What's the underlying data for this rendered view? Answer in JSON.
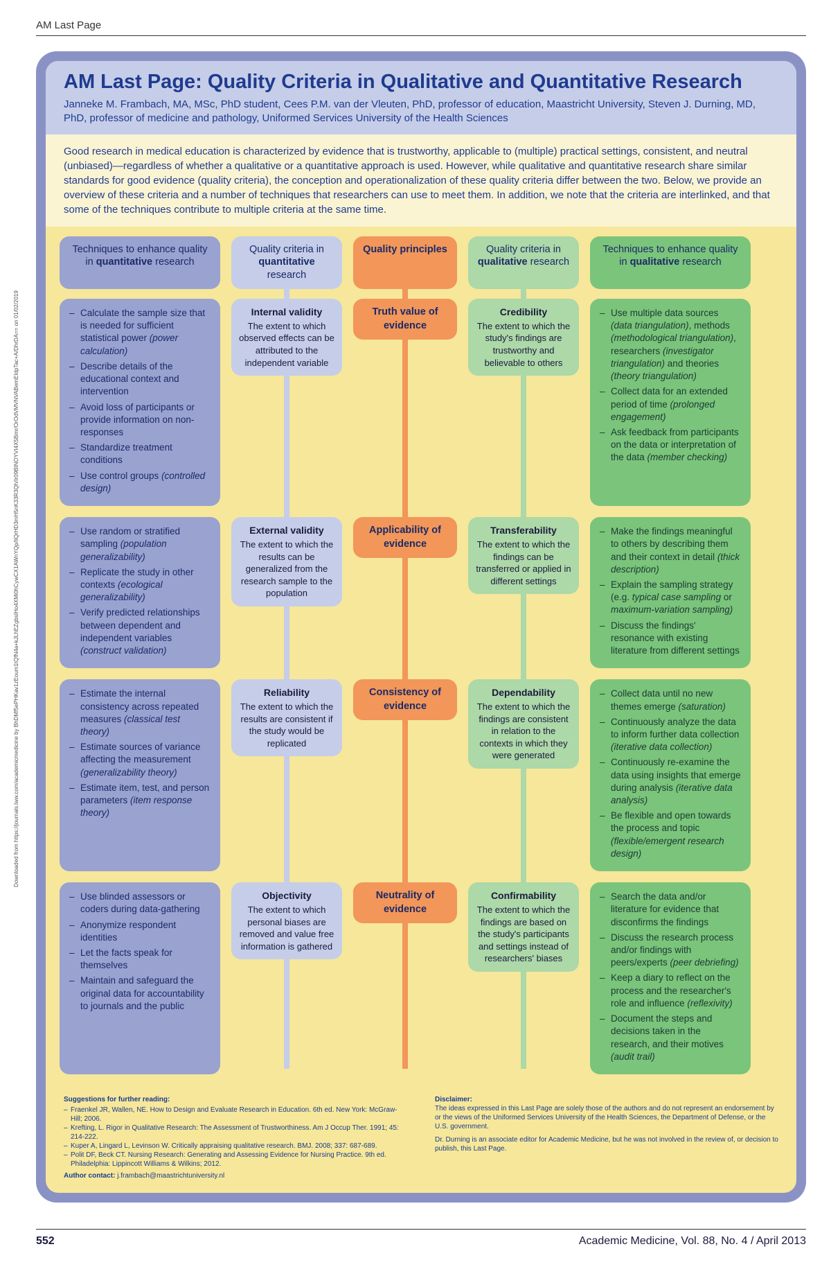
{
  "running_head": "AM Last Page",
  "side_note": "Downloaded from https://journals.lww.com/academicmedicine by BhDMf5ePHKav1zEoum1tQfN4a+kJLhEZgbsIHo4XMi0hCywCX1AWnYQp/IlQrHD3mH5nK33R3Qh/Ir09BINOYVI4X5Bmr/OrOdVMVNVABemEIdpTac+A/DhrDA== on 01/02/2019",
  "title": "AM Last Page: Quality Criteria in Qualitative and Quantitative Research",
  "authors": "Janneke M. Frambach, MA, MSc, PhD student, Cees P.M. van der Vleuten, PhD, professor of education, Maastricht University, Steven J. Durning, MD, PhD, professor of medicine and pathology, Uniformed Services University of the Health Sciences",
  "intro": "Good research in medical education is characterized by evidence that is trustworthy, applicable to (multiple) practical settings, consistent, and neutral (unbiased)—regardless of whether a qualitative or a quantitative approach is used. However, while qualitative and quantitative research share similar standards for good evidence (quality criteria), the conception and operationalization of these quality criteria differ between the two. Below, we provide an overview of these criteria and a number of techniques that researchers can use to meet them. In addition, we note that the criteria are interlinked, and that some of the techniques contribute to multiple criteria at the same time.",
  "headers": {
    "c1": "Techniques to enhance quality in <strong>quantitative</strong> research",
    "c2": "Quality criteria in <strong>quantitative</strong> research",
    "c3": "<strong>Quality principles</strong>",
    "c4": "Quality criteria in <strong>qualitative</strong> research",
    "c5": "Techniques to enhance quality in <strong>qualitative</strong> research"
  },
  "rows": [
    {
      "quant_tech": "<li>Calculate the sample size that is needed for sufficient statistical power <em>(power calculation)</em></li><li>Describe details of the educational context and intervention</li><li>Avoid loss of participants or provide information on non-responses</li><li>Standardize treatment conditions</li><li>Use control groups <em>(controlled design)</em></li>",
      "quant_crit_title": "Internal validity",
      "quant_crit_body": "The extent to which observed effects can be attributed to the independent variable",
      "principle": "Truth value of evidence",
      "qual_crit_title": "Credibility",
      "qual_crit_body": "The extent to which the study's findings are trustworthy and believable to others",
      "qual_tech": "<li>Use multiple data sources <em>(data triangulation)</em>, methods <em>(methodological triangulation)</em>, researchers <em>(investigator triangulation)</em> and theories <em>(theory triangulation)</em></li><li>Collect data for an extended period of time <em>(prolonged engagement)</em></li><li>Ask feedback from participants on the data or interpretation of the data <em>(member checking)</em></li>"
    },
    {
      "quant_tech": "<li>Use random or stratified sampling <em>(population generalizability)</em></li><li>Replicate the study in other contexts <em>(ecological generalizability)</em></li><li>Verify predicted relationships between dependent and independent variables <em>(construct validation)</em></li>",
      "quant_crit_title": "External validity",
      "quant_crit_body": "The extent to which the results can be generalized from the research sample to the population",
      "principle": "Applicability of evidence",
      "qual_crit_title": "Transferability",
      "qual_crit_body": "The extent to which the findings can be transferred or applied in different settings",
      "qual_tech": "<li>Make the findings meaningful to others by describing them and their context in detail <em>(thick description)</em></li><li>Explain the sampling strategy (e.g. <em>typical case sampling</em> or <em>maximum-variation sampling)</em></li><li>Discuss the findings' resonance with existing literature from different settings</li>"
    },
    {
      "quant_tech": "<li>Estimate the internal consistency across repeated measures <em>(classical test theory)</em></li><li>Estimate sources of variance affecting the measurement <em>(generalizability theory)</em></li><li>Estimate item, test, and person parameters <em>(item response theory)</em></li>",
      "quant_crit_title": "Reliability",
      "quant_crit_body": "The extent to which the results are consistent if the study would be replicated",
      "principle": "Consistency of evidence",
      "qual_crit_title": "Dependability",
      "qual_crit_body": "The extent to which the findings are consistent in relation to the contexts in which they were generated",
      "qual_tech": "<li>Collect data until no new themes emerge <em>(saturation)</em></li><li>Continuously analyze the data to inform further data collection <em>(iterative data collection)</em></li><li>Continuously re-examine the data using insights that emerge during analysis <em>(iterative data analysis)</em></li><li>Be flexible and open towards the process and topic <em>(flexible/emergent research design)</em></li>"
    },
    {
      "quant_tech": "<li>Use blinded assessors or coders during data-gathering</li><li>Anonymize respondent identities</li><li>Let the facts speak for themselves</li><li>Maintain and safeguard the original data for accountability to journals and the public</li>",
      "quant_crit_title": "Objectivity",
      "quant_crit_body": "The extent to which personal biases are removed and value free information is gathered",
      "principle": "Neutrality of evidence",
      "qual_crit_title": "Confirmability",
      "qual_crit_body": "The extent to which the findings are based on the study's participants and settings instead of researchers' biases",
      "qual_tech": "<li>Search the data and/or literature for evidence that disconfirms the findings</li><li>Discuss the research process and/or findings with peers/experts <em>(peer debriefing)</em></li><li>Keep a diary to reflect on the process and the researcher's role and influence <em>(reflexivity)</em></li><li>Document the steps and decisions taken in the research, and their motives <em>(audit trail)</em></li>"
    }
  ],
  "footer": {
    "suggestions_title": "Suggestions for further reading:",
    "suggestions": "<li>Fraenkel JR, Wallen, NE. How to Design and Evaluate Research in Education. 6th ed. New York: McGraw-Hill; 2006.</li><li>Krefting, L. Rigor in Qualitative Research: The Assessment of Trustworthiness. Am J Occup Ther. 1991; 45: 214-222.</li><li>Kuper A, Lingard L, Levinson W. Critically appraising qualitative research. BMJ. 2008; 337: 687-689.</li><li>Polit DF, Beck CT. Nursing Research: Generating and Assessing Evidence for Nursing Practice. 9th ed. Philadelphia: Lippincott Williams & Wilkins; 2012.</li>",
    "author_contact_label": "Author contact:",
    "author_contact": "j.frambach@maastrichtuniversity.nl",
    "disclaimer_title": "Disclaimer:",
    "disclaimer": "The ideas expressed in this Last Page are solely those of the authors and do not represent an endorsement by or the views of the Uniformed Services University of the Health Sciences, the Department of Defense, or the U.S. government.",
    "disclaimer2": "Dr. Durning is an associate editor for Academic Medicine, but he was not involved in the review of, or decision to publish, this Last Page."
  },
  "bottom": {
    "page": "552",
    "journal": "Academic Medicine, Vol. 88, No. 4 / April 2013"
  }
}
